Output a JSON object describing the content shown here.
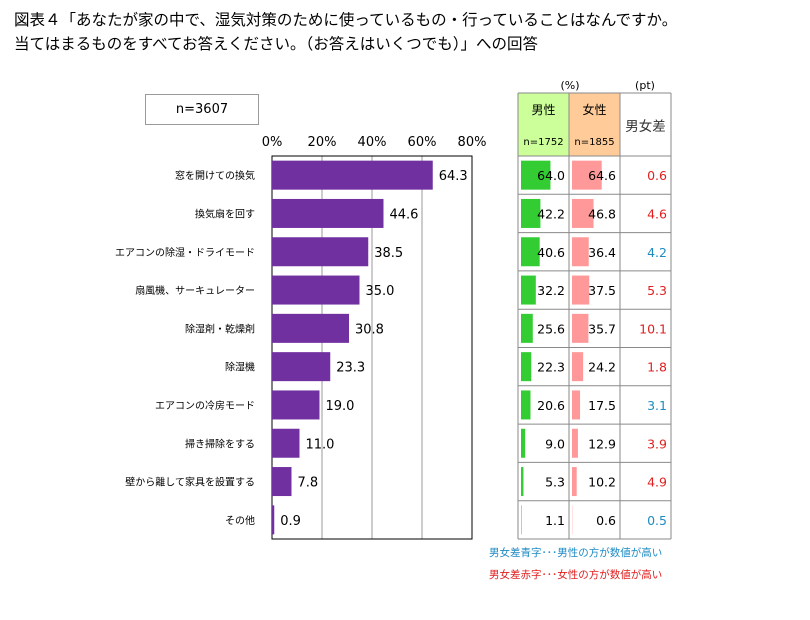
{
  "title": {
    "line1": "図表４「あなたが家の中で、湿気対策のために使っているもの・行っていることはなんですか。",
    "line2": "当てはまるものをすべてお答えください。（お答えはいくつでも）」への回答"
  },
  "sample_size": "n=3607",
  "colors": {
    "bar": "#7030a0",
    "male_bar": "#33cc33",
    "female_bar": "#ff9999",
    "male_header": "#ccff99",
    "female_header": "#ffcc99",
    "diff_blue": "#1e8bc3",
    "diff_red": "#e02020"
  },
  "table": {
    "unit_pct": "(%)",
    "unit_pt": "(pt)",
    "male_label": "男性",
    "male_n": "n=1752",
    "female_label": "女性",
    "female_n": "n=1855",
    "diff_label": "男女差"
  },
  "legend": {
    "blue": "男女差青字･･･男性の方が数値が高い",
    "red": "男女差赤字･･･女性の方が数値が高い"
  },
  "chart_data": {
    "type": "bar",
    "orientation": "horizontal",
    "categories": [
      "窓を開けての換気",
      "換気扇を回す",
      "エアコンの除湿・ドライモード",
      "扇風機、サーキュレーター",
      "除湿剤・乾燥剤",
      "除湿機",
      "エアコンの冷房モード",
      "掃き掃除をする",
      "壁から離して家具を設置する",
      "その他"
    ],
    "values": [
      64.3,
      44.6,
      38.5,
      35.0,
      30.8,
      23.3,
      19.0,
      11.0,
      7.8,
      0.9
    ],
    "value_labels": [
      "64.3",
      "44.6",
      "38.5",
      "35.0",
      "30.8",
      "23.3",
      "19.0",
      "11.0",
      "7.8",
      "0.9"
    ],
    "xlim": [
      0,
      80
    ],
    "xticks": [
      "0%",
      "20%",
      "40%",
      "60%",
      "80%"
    ],
    "grid": true,
    "male": [
      64.0,
      42.2,
      40.6,
      32.2,
      25.6,
      22.3,
      20.6,
      9.0,
      5.3,
      1.1
    ],
    "male_labels": [
      "64.0",
      "42.2",
      "40.6",
      "32.2",
      "25.6",
      "22.3",
      "20.6",
      "9.0",
      "5.3",
      "1.1"
    ],
    "female": [
      64.6,
      46.8,
      36.4,
      37.5,
      35.7,
      24.2,
      17.5,
      12.9,
      10.2,
      0.6
    ],
    "female_labels": [
      "64.6",
      "46.8",
      "36.4",
      "37.5",
      "35.7",
      "24.2",
      "17.5",
      "12.9",
      "10.2",
      "0.6"
    ],
    "diff_labels": [
      "0.6",
      "4.6",
      "4.2",
      "5.3",
      "10.1",
      "1.8",
      "3.1",
      "3.9",
      "4.9",
      "0.5"
    ],
    "diff_colors": [
      "red",
      "red",
      "blue",
      "red",
      "red",
      "red",
      "blue",
      "red",
      "red",
      "blue"
    ]
  }
}
